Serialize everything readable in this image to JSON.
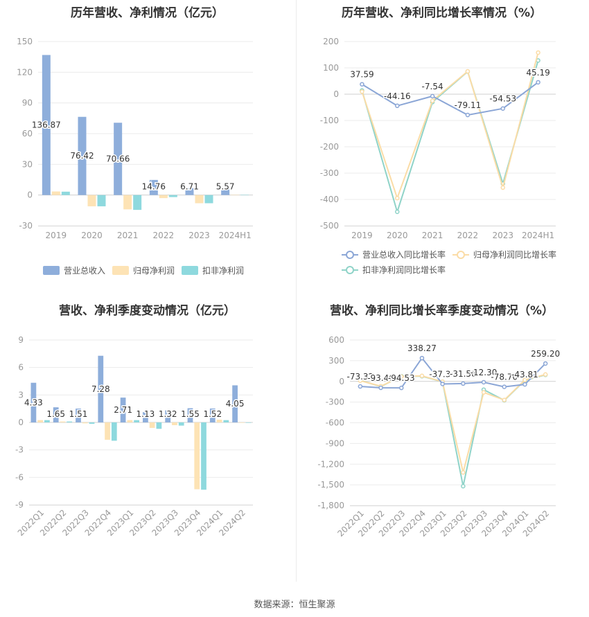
{
  "source": "数据来源：恒生聚源",
  "chart_data": [
    {
      "type": "bar",
      "title": "历年营收、净利情况（亿元）",
      "categories": [
        "2019",
        "2020",
        "2021",
        "2022",
        "2023",
        "2024H1"
      ],
      "ylim": [
        -30,
        150
      ],
      "yticks": [
        -30,
        0,
        30,
        60,
        90,
        120,
        150
      ],
      "legend": "bottom",
      "grid": true,
      "series": [
        {
          "name": "营业总收入",
          "color": "#8eaedb",
          "values": [
            136.87,
            76.42,
            70.66,
            14.76,
            6.71,
            5.57
          ],
          "labels": [
            "136.87",
            "76.42",
            "70.66",
            "14.76",
            "6.71",
            "5.57"
          ]
        },
        {
          "name": "归母净利润",
          "color": "#fde3b5",
          "values": [
            3.5,
            -11,
            -14,
            -3,
            -8,
            0.3
          ]
        },
        {
          "name": "扣非净利润",
          "color": "#8ed9de",
          "values": [
            3.3,
            -11,
            -14.5,
            -2,
            -8,
            0.2
          ]
        }
      ]
    },
    {
      "type": "line",
      "title": "历年营收、净利同比增长率情况（%）",
      "categories": [
        "2019",
        "2020",
        "2021",
        "2022",
        "2023",
        "2024H1"
      ],
      "ylim": [
        -500,
        200
      ],
      "yticks": [
        -500,
        -400,
        -300,
        -200,
        -100,
        0,
        100,
        200
      ],
      "legend": "bottom",
      "grid": true,
      "series": [
        {
          "name": "营业总收入同比增长率",
          "color": "#8ba6d6",
          "values": [
            37.59,
            -44.16,
            -7.54,
            -79.11,
            -54.53,
            45.19
          ],
          "labels": [
            "37.59",
            "-44.16",
            "-7.54",
            "-79.11",
            "-54.53",
            "45.19"
          ]
        },
        {
          "name": "归母净利润同比增长率",
          "color": "#fbdca6",
          "values": [
            10,
            -395,
            -25,
            87,
            -355,
            158
          ]
        },
        {
          "name": "扣非净利润同比增长率",
          "color": "#8fd3c8",
          "values": [
            14,
            -447,
            -30,
            86,
            -340,
            128
          ]
        }
      ]
    },
    {
      "type": "bar",
      "title": "营收、净利季度变动情况（亿元）",
      "categories": [
        "2022Q1",
        "2022Q2",
        "2022Q3",
        "2022Q4",
        "2023Q1",
        "2023Q2",
        "2023Q3",
        "2023Q4",
        "2024Q1",
        "2024Q2"
      ],
      "ylim": [
        -9,
        9
      ],
      "yticks": [
        -9,
        -6,
        -3,
        0,
        3,
        6,
        9
      ],
      "legend": "bottom",
      "grid": true,
      "series": [
        {
          "name": "营业总收入",
          "color": "#8eaedb",
          "values": [
            4.33,
            1.65,
            1.51,
            7.28,
            2.71,
            1.13,
            1.32,
            1.55,
            1.52,
            4.05
          ],
          "labels": [
            "4.33",
            "1.65",
            "1.51",
            "7.28",
            "2.71",
            "1.13",
            "1.32",
            "1.55",
            "1.52",
            "4.05"
          ]
        },
        {
          "name": "归母净利润",
          "color": "#fde3b5",
          "values": [
            0.25,
            0.1,
            -0.1,
            -1.9,
            0.25,
            -0.6,
            -0.3,
            -7.3,
            0.3,
            -0.05
          ]
        },
        {
          "name": "扣非净利润",
          "color": "#8ed9de",
          "values": [
            0.25,
            0.1,
            -0.15,
            -2.0,
            0.25,
            -0.7,
            -0.35,
            -7.35,
            0.25,
            -0.05
          ]
        }
      ]
    },
    {
      "type": "line",
      "title": "营收、净利同比增长率季度变动情况（%）",
      "categories": [
        "2022Q1",
        "2022Q2",
        "2022Q3",
        "2022Q4",
        "2023Q1",
        "2023Q2",
        "2023Q3",
        "2023Q4",
        "2024Q1",
        "2024Q2"
      ],
      "ylim": [
        -1800,
        600
      ],
      "yticks": [
        -1800,
        -1500,
        -1200,
        -900,
        -600,
        -300,
        0,
        300,
        600
      ],
      "ytick_labels": [
        "-1,800",
        "-1,500",
        "-1,200",
        "-900",
        "-600",
        "-300",
        "0",
        "300",
        "600"
      ],
      "legend": "bottom",
      "grid": true,
      "series": [
        {
          "name": "营业总收入同比增长率",
          "color": "#8ba6d6",
          "values": [
            -73.32,
            -93.46,
            -94.53,
            338.27,
            -37.34,
            -31.56,
            -12.3,
            -78.7,
            -43.81,
            259.2
          ],
          "labels": [
            "-73.32",
            "-93.46",
            "-94.53",
            "338.27",
            "-37.34",
            "-31.56",
            "-12.30",
            "-78.70",
            "-43.81",
            "259.20"
          ]
        },
        {
          "name": "归母净利润同比增长率",
          "color": "#fbdca6",
          "values": [
            10,
            -70,
            70,
            80,
            -5,
            -1320,
            -160,
            -270,
            20,
            100
          ]
        },
        {
          "name": "扣非净利润同比增长率",
          "color": "#8fd3c8",
          "values": [
            15,
            -75,
            75,
            75,
            -5,
            -1520,
            -120,
            -275,
            15,
            95
          ]
        }
      ]
    }
  ]
}
